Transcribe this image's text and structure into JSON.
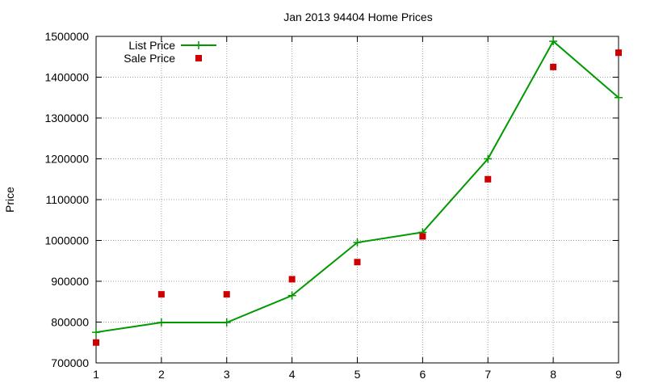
{
  "chart_data": {
    "type": "line",
    "title": "Jan 2013 94404 Home Prices",
    "xlabel": "",
    "ylabel": "Price",
    "xlim": [
      1,
      9
    ],
    "ylim": [
      700000,
      1500000
    ],
    "x_ticks": [
      1,
      2,
      3,
      4,
      5,
      6,
      7,
      8,
      9
    ],
    "y_ticks": [
      700000,
      800000,
      900000,
      1000000,
      1100000,
      1200000,
      1300000,
      1400000,
      1500000
    ],
    "grid": true,
    "legend_position": "top-left",
    "x": [
      1,
      2,
      3,
      4,
      5,
      6,
      7,
      8,
      9
    ],
    "series": [
      {
        "name": "List Price",
        "style": "line-with-plus-markers",
        "color": "#009900",
        "values": [
          775000,
          799000,
          799000,
          865000,
          995000,
          1020000,
          1200000,
          1488000,
          1350000
        ]
      },
      {
        "name": "Sale Price",
        "style": "square-markers",
        "color": "#cc0000",
        "values": [
          750000,
          868000,
          868000,
          905000,
          947000,
          1010000,
          1150000,
          1425000,
          1460000
        ]
      }
    ]
  }
}
